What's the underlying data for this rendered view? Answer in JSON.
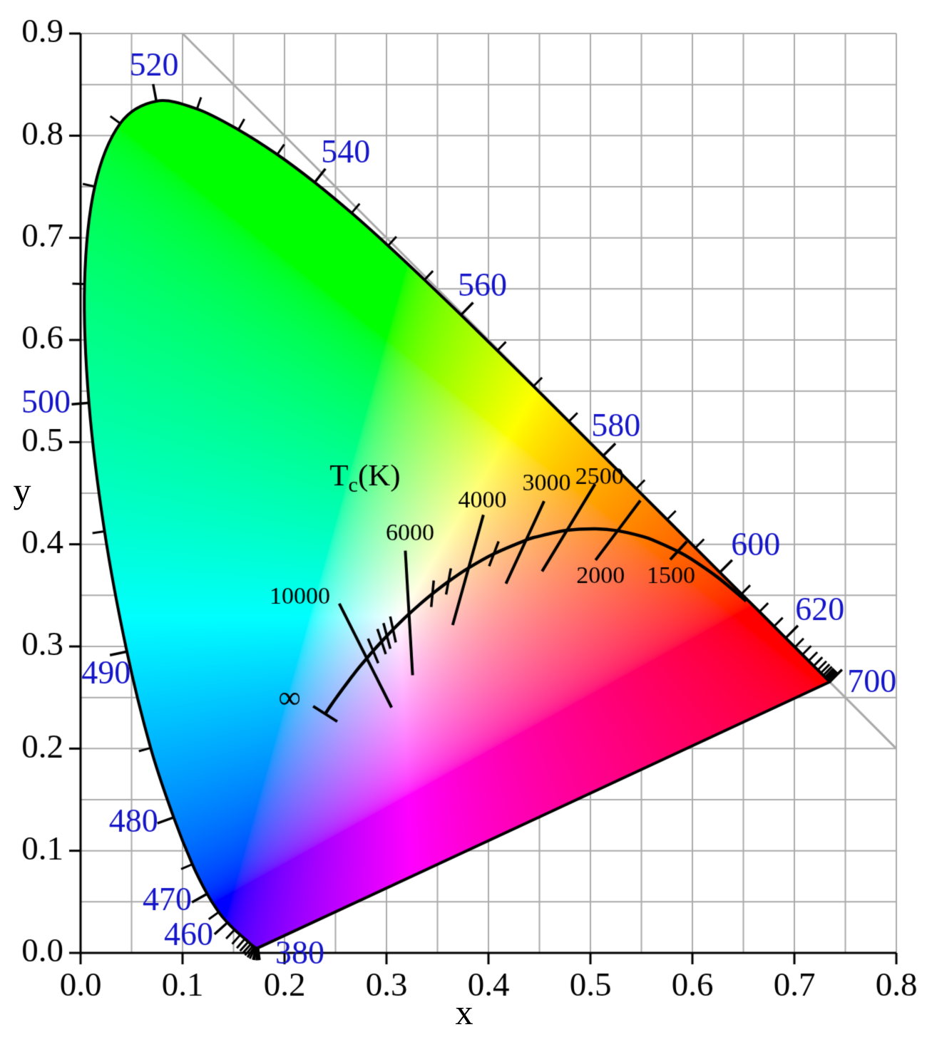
{
  "chart_data": {
    "type": "area",
    "title": "",
    "xlabel": "x",
    "ylabel": "y",
    "xlim": [
      0.0,
      0.8
    ],
    "ylim": [
      0.0,
      0.9
    ],
    "grid_step": 0.05,
    "grid_on": true,
    "x_tick_labels": [
      "0.0",
      "0.1",
      "0.2",
      "0.3",
      "0.4",
      "0.5",
      "0.6",
      "0.7",
      "0.8"
    ],
    "y_tick_labels": [
      "0.0",
      "0.1",
      "0.2",
      "0.3",
      "0.4",
      "0.5",
      "0.6",
      "0.7",
      "0.8",
      "0.9"
    ],
    "colors": {
      "background": "#ffffff",
      "grid": "#ababab",
      "diagonal": "#aaaaaa",
      "axis": "#000000",
      "locus_outline": "#000000",
      "wavelength_label": "#1515c8",
      "temperature_label": "#000000"
    },
    "diagonal_line": {
      "x1": 0.1,
      "y1": 0.9,
      "x2": 0.8,
      "y2": 0.2
    },
    "spectral_locus": [
      [
        380,
        0.1741,
        0.005
      ],
      [
        385,
        0.174,
        0.005
      ],
      [
        390,
        0.1738,
        0.0049
      ],
      [
        395,
        0.1736,
        0.0049
      ],
      [
        400,
        0.1733,
        0.0048
      ],
      [
        405,
        0.173,
        0.0048
      ],
      [
        410,
        0.1726,
        0.0048
      ],
      [
        415,
        0.1721,
        0.0048
      ],
      [
        420,
        0.1714,
        0.0051
      ],
      [
        425,
        0.1703,
        0.0058
      ],
      [
        430,
        0.1689,
        0.0069
      ],
      [
        435,
        0.1669,
        0.0086
      ],
      [
        440,
        0.1644,
        0.0109
      ],
      [
        445,
        0.1611,
        0.0138
      ],
      [
        450,
        0.1566,
        0.0177
      ],
      [
        455,
        0.151,
        0.0227
      ],
      [
        460,
        0.144,
        0.0297
      ],
      [
        465,
        0.1355,
        0.0399
      ],
      [
        470,
        0.1241,
        0.0578
      ],
      [
        475,
        0.1096,
        0.0868
      ],
      [
        480,
        0.0913,
        0.1327
      ],
      [
        485,
        0.0687,
        0.2007
      ],
      [
        490,
        0.0454,
        0.295
      ],
      [
        495,
        0.0235,
        0.4127
      ],
      [
        500,
        0.0082,
        0.5384
      ],
      [
        505,
        0.0039,
        0.6548
      ],
      [
        510,
        0.0139,
        0.7502
      ],
      [
        515,
        0.0389,
        0.812
      ],
      [
        520,
        0.0743,
        0.8338
      ],
      [
        525,
        0.1142,
        0.8262
      ],
      [
        530,
        0.1547,
        0.8059
      ],
      [
        535,
        0.1929,
        0.7816
      ],
      [
        540,
        0.2296,
        0.7543
      ],
      [
        545,
        0.2658,
        0.7243
      ],
      [
        550,
        0.3016,
        0.6923
      ],
      [
        555,
        0.3373,
        0.6589
      ],
      [
        560,
        0.3731,
        0.6245
      ],
      [
        565,
        0.4087,
        0.5896
      ],
      [
        570,
        0.4441,
        0.5547
      ],
      [
        575,
        0.4788,
        0.5202
      ],
      [
        580,
        0.5125,
        0.4866
      ],
      [
        585,
        0.5448,
        0.4544
      ],
      [
        590,
        0.5752,
        0.4242
      ],
      [
        595,
        0.6029,
        0.3965
      ],
      [
        600,
        0.627,
        0.3725
      ],
      [
        605,
        0.6482,
        0.3514
      ],
      [
        610,
        0.6658,
        0.334
      ],
      [
        615,
        0.6801,
        0.3197
      ],
      [
        620,
        0.6915,
        0.3083
      ],
      [
        625,
        0.7006,
        0.2993
      ],
      [
        630,
        0.7079,
        0.292
      ],
      [
        635,
        0.714,
        0.2859
      ],
      [
        640,
        0.719,
        0.2809
      ],
      [
        645,
        0.723,
        0.277
      ],
      [
        650,
        0.726,
        0.274
      ],
      [
        655,
        0.7283,
        0.2717
      ],
      [
        660,
        0.73,
        0.27
      ],
      [
        665,
        0.7311,
        0.2689
      ],
      [
        670,
        0.732,
        0.268
      ],
      [
        675,
        0.7327,
        0.2673
      ],
      [
        680,
        0.7334,
        0.2666
      ],
      [
        685,
        0.734,
        0.266
      ],
      [
        690,
        0.7344,
        0.2656
      ],
      [
        695,
        0.7346,
        0.2654
      ],
      [
        700,
        0.7347,
        0.2653
      ]
    ],
    "major_tick_wavelengths": [
      460,
      470,
      480,
      490,
      500,
      520,
      540,
      560,
      580,
      600,
      620,
      700
    ],
    "wavelength_labels": [
      {
        "text": "380",
        "x": 0.215,
        "y": -0.002
      },
      {
        "text": "460",
        "x": 0.106,
        "y": 0.016
      },
      {
        "text": "470",
        "x": 0.085,
        "y": 0.05
      },
      {
        "text": "480",
        "x": 0.052,
        "y": 0.127
      },
      {
        "text": "490",
        "x": 0.025,
        "y": 0.272
      },
      {
        "text": "500",
        "x": -0.034,
        "y": 0.537
      },
      {
        "text": "520",
        "x": 0.072,
        "y": 0.867
      },
      {
        "text": "540",
        "x": 0.26,
        "y": 0.782
      },
      {
        "text": "560",
        "x": 0.394,
        "y": 0.652
      },
      {
        "text": "580",
        "x": 0.525,
        "y": 0.514
      },
      {
        "text": "600",
        "x": 0.662,
        "y": 0.398
      },
      {
        "text": "620",
        "x": 0.725,
        "y": 0.334
      },
      {
        "text": "700",
        "x": 0.776,
        "y": 0.264
      }
    ],
    "planckian_locus": [
      [
        "inf",
        0.2399,
        0.234
      ],
      [
        100000,
        0.2426,
        0.2381
      ],
      [
        50000,
        0.2449,
        0.2415
      ],
      [
        30000,
        0.2501,
        0.2489
      ],
      [
        20000,
        0.2565,
        0.2577
      ],
      [
        15000,
        0.2637,
        0.2673
      ],
      [
        12000,
        0.2719,
        0.278
      ],
      [
        10000,
        0.2807,
        0.2884
      ],
      [
        9000,
        0.2869,
        0.2956
      ],
      [
        8000,
        0.2952,
        0.3048
      ],
      [
        7500,
        0.3004,
        0.3103
      ],
      [
        7000,
        0.3064,
        0.3166
      ],
      [
        6500,
        0.3135,
        0.3237
      ],
      [
        6000,
        0.3221,
        0.3318
      ],
      [
        5500,
        0.3325,
        0.3411
      ],
      [
        5000,
        0.3451,
        0.3516
      ],
      [
        4500,
        0.3608,
        0.3636
      ],
      [
        4000,
        0.3805,
        0.3768
      ],
      [
        3500,
        0.4053,
        0.3907
      ],
      [
        3000,
        0.4369,
        0.4041
      ],
      [
        2856,
        0.4476,
        0.4074
      ],
      [
        2500,
        0.477,
        0.4137
      ],
      [
        2200,
        0.5054,
        0.4152
      ],
      [
        2000,
        0.5267,
        0.4133
      ],
      [
        1800,
        0.5496,
        0.4081
      ],
      [
        1700,
        0.5609,
        0.4043
      ],
      [
        1500,
        0.5857,
        0.3931
      ],
      [
        1400,
        0.5984,
        0.3859
      ],
      [
        1200,
        0.6249,
        0.3676
      ],
      [
        1000,
        0.6528,
        0.3444
      ]
    ],
    "isotherms": [
      {
        "t": "inf",
        "label": "∞",
        "above": 0.014,
        "below": 0.014,
        "label_x": 0.205,
        "label_y": 0.248
      },
      {
        "t": 10000,
        "label": "10000",
        "above": 0.06,
        "below": 0.054,
        "label_x": 0.215,
        "label_y": 0.348
      },
      {
        "t": 6000,
        "label": "6000",
        "above": 0.062,
        "below": 0.06,
        "label_x": 0.323,
        "label_y": 0.41
      },
      {
        "t": 4000,
        "label": "4000",
        "above": 0.054,
        "below": 0.058,
        "label_x": 0.394,
        "label_y": 0.442
      },
      {
        "t": 3000,
        "label": "3000",
        "above": 0.042,
        "below": 0.047,
        "label_x": 0.457,
        "label_y": 0.459
      },
      {
        "t": 2500,
        "label": "2500",
        "above": 0.053,
        "below": 0.047,
        "label_x": 0.509,
        "label_y": 0.465
      },
      {
        "t": 2000,
        "label": "2000",
        "above": 0.037,
        "below": 0.036,
        "label_x": 0.51,
        "label_y": 0.368
      },
      {
        "t": 1500,
        "label": "1500",
        "above": 0.013,
        "below": 0.011,
        "label_x": 0.579,
        "label_y": 0.368
      }
    ],
    "planck_minor_tick_temps": [
      9000,
      8000,
      7500,
      7000,
      5000,
      4500,
      3500
    ],
    "tc_label": {
      "main": "T",
      "sub": "c",
      "suffix": "(K)",
      "x": 0.279,
      "y": 0.468
    }
  }
}
